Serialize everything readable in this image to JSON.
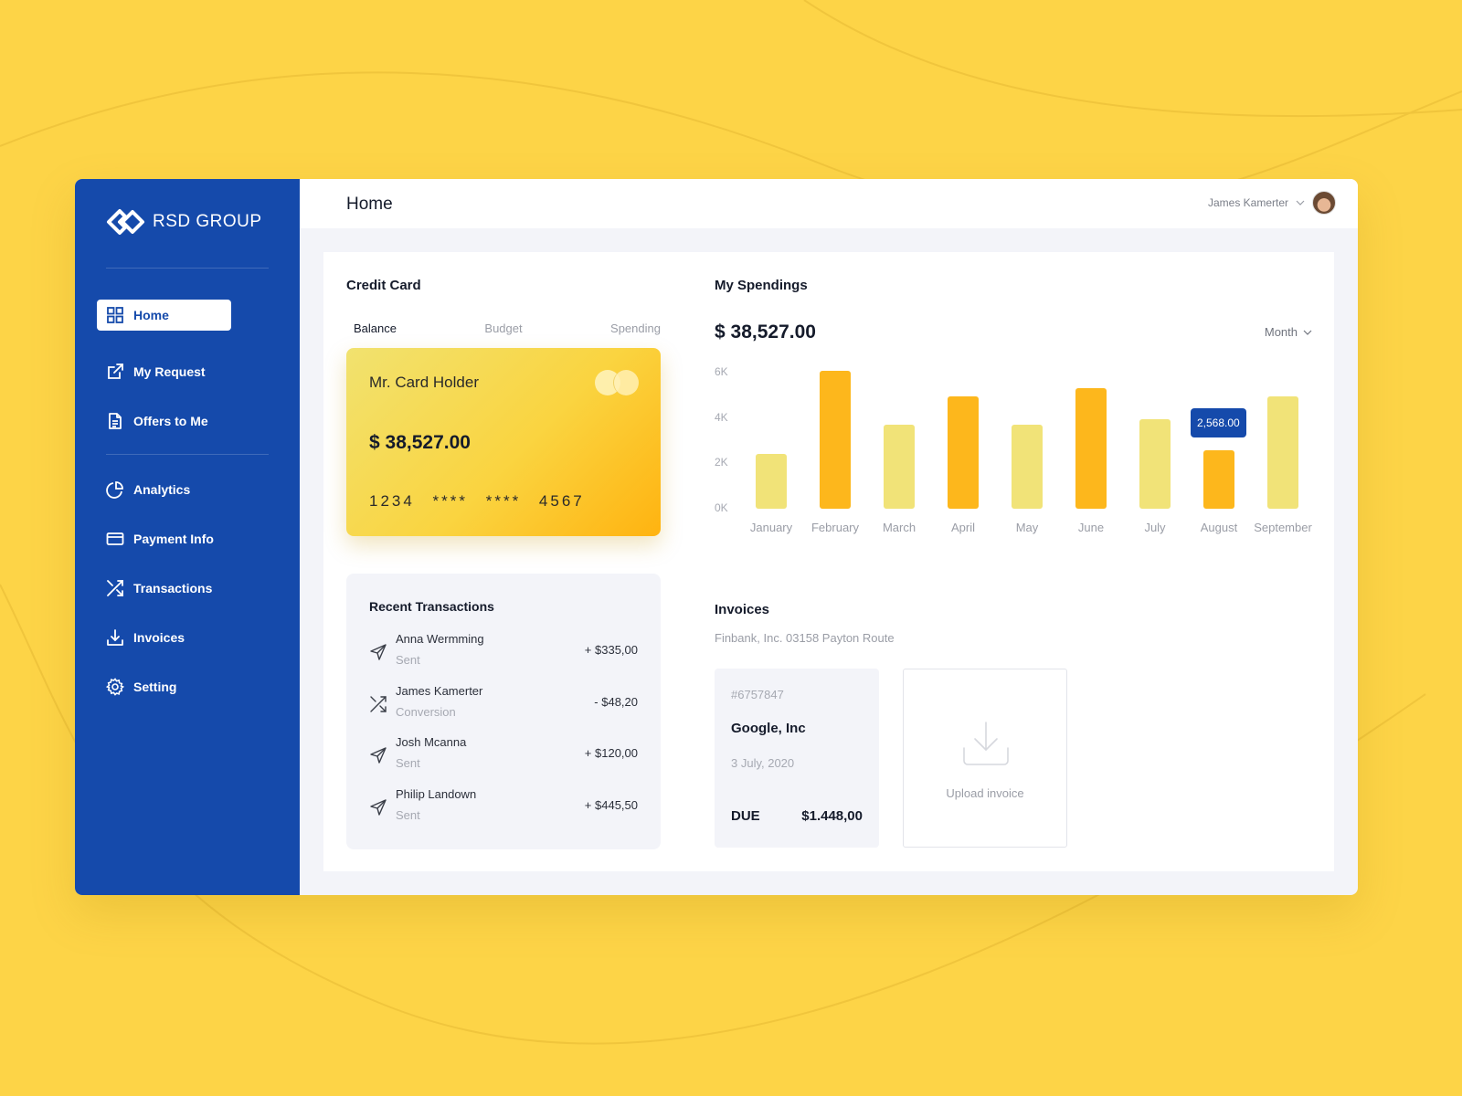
{
  "brand": {
    "name": "RSD GROUP",
    "accent": "#154aab",
    "background": "#fdd447"
  },
  "sidebar": {
    "items": [
      {
        "label": "Home",
        "icon": "grid-icon",
        "active": true
      },
      {
        "label": "My Request",
        "icon": "external-link-icon"
      },
      {
        "label": "Offers to Me",
        "icon": "document-icon"
      },
      {
        "label": "Analytics",
        "icon": "pie-chart-icon"
      },
      {
        "label": "Payment Info",
        "icon": "credit-card-icon"
      },
      {
        "label": "Transactions",
        "icon": "shuffle-icon"
      },
      {
        "label": "Invoices",
        "icon": "download-icon"
      },
      {
        "label": "Setting",
        "icon": "gear-icon"
      }
    ]
  },
  "header": {
    "title": "Home",
    "user_name": "James Kamerter"
  },
  "credit_card": {
    "title": "Credit Card",
    "tabs": [
      {
        "label": "Balance",
        "active": true
      },
      {
        "label": "Budget"
      },
      {
        "label": "Spending"
      }
    ],
    "holder": "Mr. Card Holder",
    "balance": "$ 38,527.00",
    "number": "1234 **** **** 4567"
  },
  "recent_transactions": {
    "title": "Recent Transactions",
    "items": [
      {
        "name": "Anna Wermming",
        "type": "Sent",
        "amount": "+ $335,00",
        "icon": "send-icon"
      },
      {
        "name": "James Kamerter",
        "type": "Conversion",
        "amount": "- $48,20",
        "icon": "shuffle-icon"
      },
      {
        "name": "Josh Mcanna",
        "type": "Sent",
        "amount": "+ $120,00",
        "icon": "send-icon"
      },
      {
        "name": "Philip Landown",
        "type": "Sent",
        "amount": "+ $445,50",
        "icon": "send-icon"
      }
    ]
  },
  "spendings": {
    "title": "My Spendings",
    "total": "$ 38,527.00",
    "period_select": "Month",
    "tooltip": "2,568.00"
  },
  "chart_data": {
    "type": "bar",
    "title": "My Spendings",
    "categories": [
      "January",
      "February",
      "March",
      "April",
      "May",
      "June",
      "July",
      "August",
      "September"
    ],
    "values": [
      2400,
      6100,
      3700,
      4950,
      3700,
      5300,
      3950,
      2568,
      4950
    ],
    "highlighted": [
      false,
      true,
      false,
      true,
      false,
      true,
      false,
      true,
      false
    ],
    "yticks": [
      "0K",
      "2K",
      "4K",
      "6K"
    ],
    "ylim": [
      0,
      6000
    ],
    "xlabel": "",
    "ylabel": "",
    "colors": {
      "normal": "#f1e378",
      "highlight": "#fdb71c"
    },
    "annotation": {
      "category": "August",
      "text": "2,568.00"
    }
  },
  "invoices": {
    "title": "Invoices",
    "subtitle": "Finbank, Inc. 03158 Payton Route",
    "card": {
      "id": "#6757847",
      "company": "Google, Inc",
      "date": "3 July, 2020",
      "due_label": "DUE",
      "amount": "$1.448,00"
    },
    "upload_label": "Upload invoice"
  }
}
